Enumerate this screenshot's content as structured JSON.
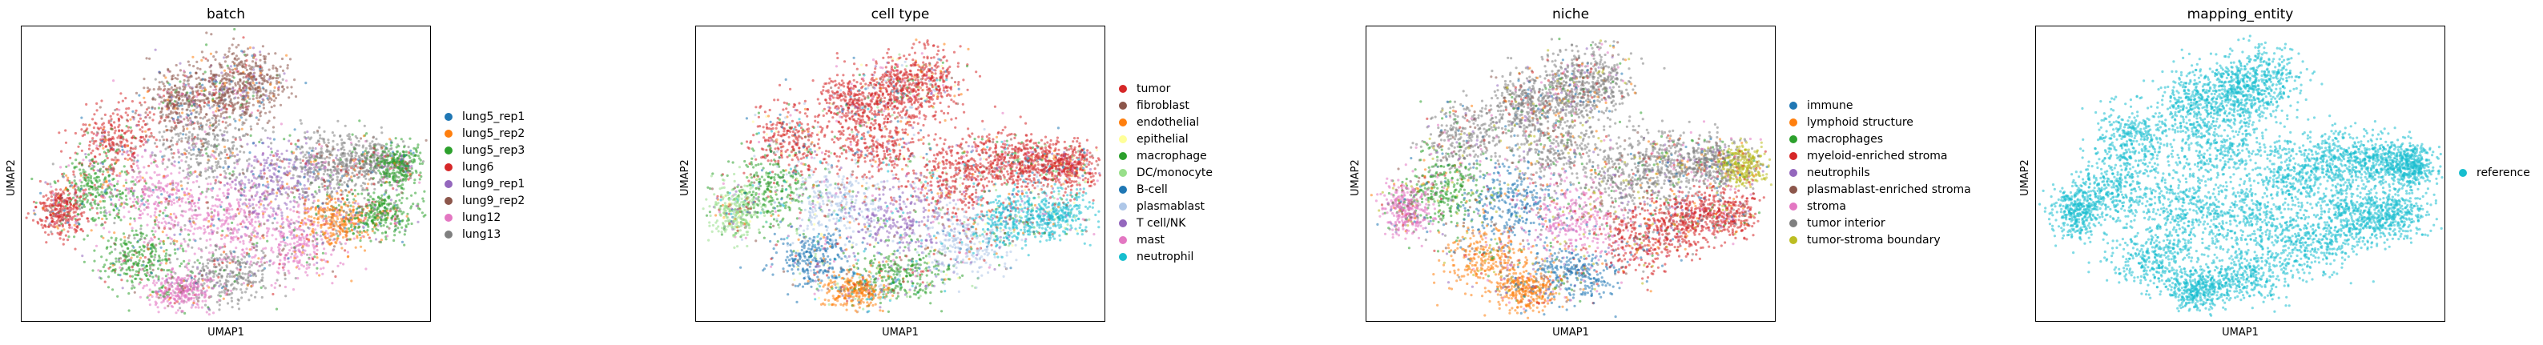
{
  "chart_data": [
    {
      "type": "scatter",
      "title": "batch",
      "xlabel": "UMAP1",
      "ylabel": "UMAP2",
      "grid": false,
      "legend_placement": "right",
      "series": [
        {
          "name": "lung5_rep1",
          "color": "#1f77b4"
        },
        {
          "name": "lung5_rep2",
          "color": "#ff7f0e"
        },
        {
          "name": "lung5_rep3",
          "color": "#2ca02c"
        },
        {
          "name": "lung6",
          "color": "#d62728"
        },
        {
          "name": "lung9_rep1",
          "color": "#9467bd"
        },
        {
          "name": "lung9_rep2",
          "color": "#8c564b"
        },
        {
          "name": "lung12",
          "color": "#e377c2"
        },
        {
          "name": "lung13",
          "color": "#7f7f7f"
        }
      ]
    },
    {
      "type": "scatter",
      "title": "cell type",
      "xlabel": "UMAP1",
      "ylabel": "UMAP2",
      "grid": false,
      "legend_placement": "right",
      "series": [
        {
          "name": "tumor",
          "color": "#d62728"
        },
        {
          "name": "fibroblast",
          "color": "#8c564b"
        },
        {
          "name": "endothelial",
          "color": "#ff7f0e"
        },
        {
          "name": "epithelial",
          "color": "#ffff99"
        },
        {
          "name": "macrophage",
          "color": "#2ca02c"
        },
        {
          "name": "DC/monocyte",
          "color": "#98df8a"
        },
        {
          "name": "B-cell",
          "color": "#1f77b4"
        },
        {
          "name": "plasmablast",
          "color": "#aec7e8"
        },
        {
          "name": "T cell/NK",
          "color": "#9467bd"
        },
        {
          "name": "mast",
          "color": "#e377c2"
        },
        {
          "name": "neutrophil",
          "color": "#17becf"
        }
      ]
    },
    {
      "type": "scatter",
      "title": "niche",
      "xlabel": "UMAP1",
      "ylabel": "UMAP2",
      "grid": false,
      "legend_placement": "right",
      "series": [
        {
          "name": "immune",
          "color": "#1f77b4"
        },
        {
          "name": "lymphoid structure",
          "color": "#ff7f0e"
        },
        {
          "name": "macrophages",
          "color": "#2ca02c"
        },
        {
          "name": "myeloid-enriched stroma",
          "color": "#d62728"
        },
        {
          "name": "neutrophils",
          "color": "#9467bd"
        },
        {
          "name": "plasmablast-enriched stroma",
          "color": "#8c564b"
        },
        {
          "name": "stroma",
          "color": "#e377c2"
        },
        {
          "name": "tumor interior",
          "color": "#7f7f7f"
        },
        {
          "name": "tumor-stroma boundary",
          "color": "#bcbd22"
        }
      ]
    },
    {
      "type": "scatter",
      "title": "mapping_entity",
      "xlabel": "UMAP1",
      "ylabel": "UMAP2",
      "grid": false,
      "legend_placement": "right",
      "series": [
        {
          "name": "reference",
          "color": "#17becf"
        }
      ]
    }
  ]
}
